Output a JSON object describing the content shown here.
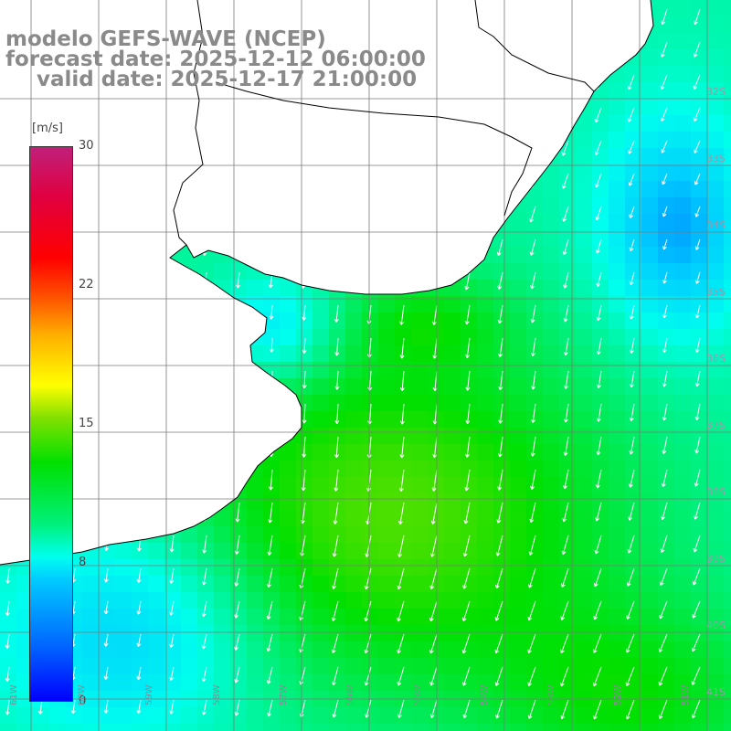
{
  "title": {
    "model": "modelo GEFS-WAVE (NCEP)",
    "forecast": "forecast date: 2025-12-12 06:00:00",
    "valid": "valid date: 2025-12-17 21:00:00"
  },
  "colorbar": {
    "unit": "[m/s]",
    "ticks": [
      "30",
      "22",
      "15",
      "8",
      "0"
    ],
    "tick_values": [
      30,
      22,
      15,
      8,
      0
    ],
    "colors": [
      "#0000ff",
      "#0066ff",
      "#00ccff",
      "#00ffee",
      "#00f07a",
      "#00e000",
      "#80e000",
      "#ffff00",
      "#ffb000",
      "#ff5000",
      "#ff0000",
      "#e00040",
      "#c0207a"
    ]
  },
  "grid": {
    "lat_labels": [
      "32S",
      "33S",
      "34S",
      "35S",
      "36S",
      "37S",
      "38S",
      "39S",
      "40S",
      "41S"
    ],
    "lon_labels": [
      "61W",
      "60W",
      "59W",
      "58W",
      "57W",
      "56W",
      "55W",
      "54W",
      "53W",
      "52W",
      "51W"
    ]
  },
  "map": {
    "land_color": "#ffffff",
    "coast_color": "#000000",
    "grid_color": "#7a7a7a",
    "arrow_color": "#ffffff",
    "wind_direction": "mostly from north-northeast, weak onshore near the coast"
  }
}
